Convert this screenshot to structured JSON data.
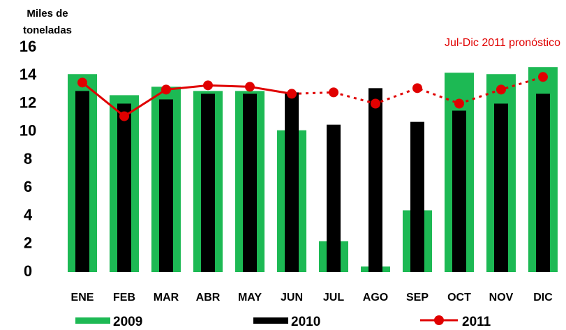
{
  "chart_data": {
    "type": "bar_line",
    "ylabel": [
      "Miles de",
      "toneladas"
    ],
    "annotation": "Jul-Dic 2011 pronóstico",
    "categories": [
      "ENE",
      "FEB",
      "MAR",
      "ABR",
      "MAY",
      "JUN",
      "JUL",
      "AGO",
      "SEP",
      "OCT",
      "NOV",
      "DIC"
    ],
    "series": [
      {
        "name": "2009",
        "color": "#1db954",
        "kind": "bar",
        "values": [
          14.1,
          12.6,
          13.2,
          12.9,
          12.9,
          10.1,
          2.2,
          0.4,
          4.4,
          14.2,
          14.1,
          14.6
        ]
      },
      {
        "name": "2010",
        "color": "#000000",
        "kind": "bar",
        "values": [
          12.9,
          12.0,
          12.3,
          12.7,
          12.7,
          12.8,
          10.5,
          13.1,
          10.7,
          11.5,
          12.0,
          12.7
        ]
      },
      {
        "name": "2011",
        "color": "#e00000",
        "kind": "line",
        "dash_from_index": 5,
        "values": [
          13.5,
          11.1,
          13.0,
          13.3,
          13.2,
          12.7,
          12.8,
          12.0,
          13.1,
          12.0,
          13.0,
          13.9
        ]
      }
    ],
    "ylim": [
      0,
      16
    ],
    "yticks": [
      0,
      2,
      4,
      6,
      8,
      10,
      12,
      14,
      16
    ],
    "grid": false
  }
}
